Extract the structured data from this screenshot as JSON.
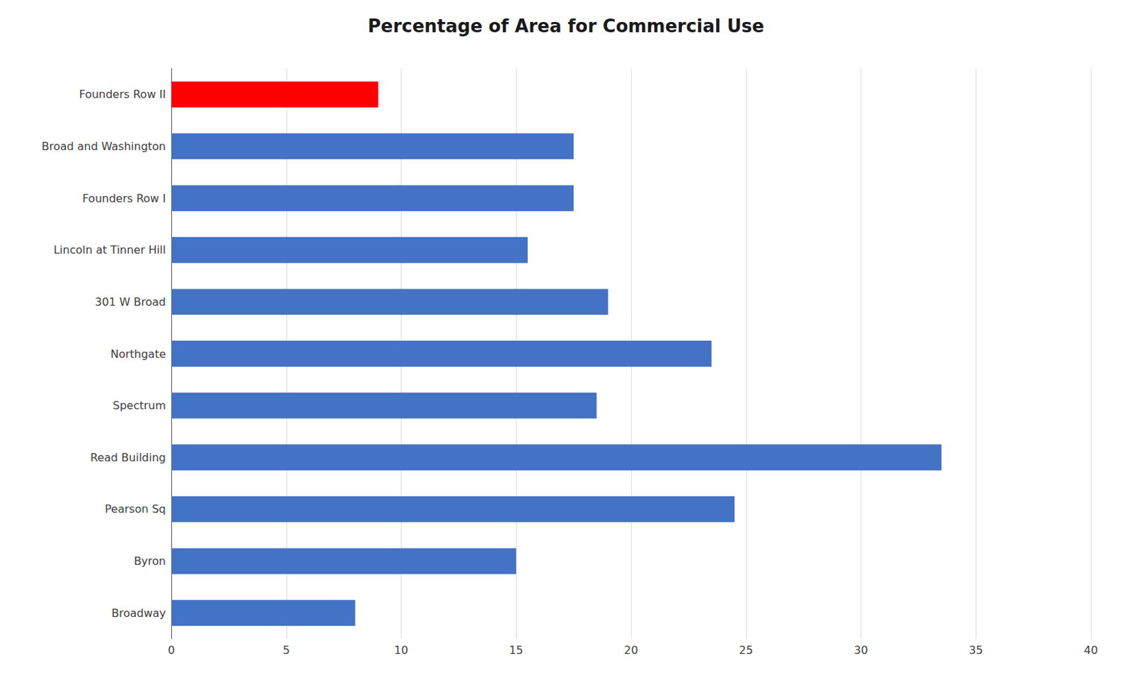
{
  "chart_data": {
    "type": "bar",
    "orientation": "horizontal",
    "title": "Percentage of Area for Commercial Use",
    "categories": [
      "Founders Row II",
      "Broad and Washington",
      "Founders Row I",
      "Lincoln at Tinner Hill",
      "301 W Broad",
      "Northgate",
      "Spectrum",
      "Read Building",
      "Pearson Sq",
      "Byron",
      "Broadway"
    ],
    "values": [
      9.0,
      17.5,
      17.5,
      15.5,
      19.0,
      23.5,
      18.5,
      33.5,
      24.5,
      15.0,
      8.0
    ],
    "colors": [
      "#FF0000",
      "#4472C4",
      "#4472C4",
      "#4472C4",
      "#4472C4",
      "#4472C4",
      "#4472C4",
      "#4472C4",
      "#4472C4",
      "#4472C4",
      "#4472C4"
    ],
    "xlim": [
      0,
      40
    ],
    "xticks": [
      0,
      5,
      10,
      15,
      20,
      25,
      30,
      35,
      40
    ],
    "grid": true
  }
}
